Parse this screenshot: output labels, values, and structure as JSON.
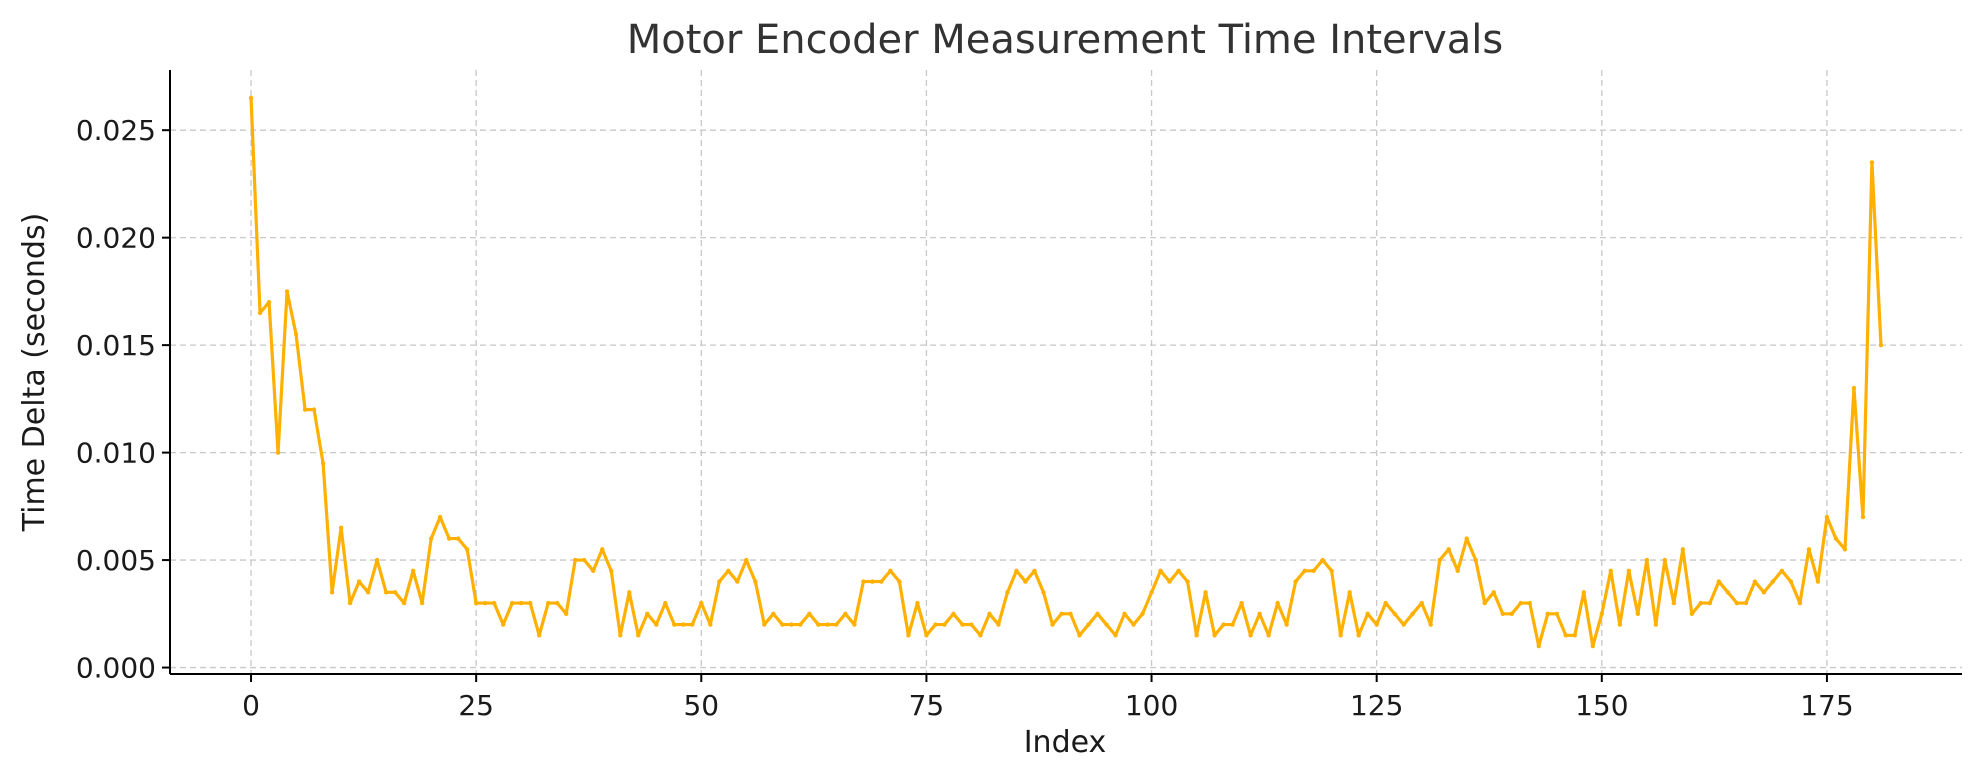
{
  "chart_data": {
    "type": "line",
    "title": "Motor Encoder Measurement Time Intervals",
    "xlabel": "Index",
    "ylabel": "Time Delta (seconds)",
    "xlim": [
      -9,
      190
    ],
    "ylim": [
      -0.0003,
      0.0278
    ],
    "xticks": [
      0,
      25,
      50,
      75,
      100,
      125,
      150,
      175
    ],
    "xtick_labels": [
      "0",
      "25",
      "50",
      "75",
      "100",
      "125",
      "150",
      "175"
    ],
    "yticks": [
      0.0,
      0.005,
      0.01,
      0.015,
      0.02,
      0.025
    ],
    "ytick_labels": [
      "0.000",
      "0.005",
      "0.010",
      "0.015",
      "0.020",
      "0.025"
    ],
    "grid": true,
    "legend": false,
    "series": [
      {
        "color": "#FFB000",
        "x": [
          0,
          1,
          2,
          3,
          4,
          5,
          6,
          7,
          8,
          9,
          10,
          11,
          12,
          13,
          14,
          15,
          16,
          17,
          18,
          19,
          20,
          21,
          22,
          23,
          24,
          25,
          26,
          27,
          28,
          29,
          30,
          31,
          32,
          33,
          34,
          35,
          36,
          37,
          38,
          39,
          40,
          41,
          42,
          43,
          44,
          45,
          46,
          47,
          48,
          49,
          50,
          51,
          52,
          53,
          54,
          55,
          56,
          57,
          58,
          59,
          60,
          61,
          62,
          63,
          64,
          65,
          66,
          67,
          68,
          69,
          70,
          71,
          72,
          73,
          74,
          75,
          76,
          77,
          78,
          79,
          80,
          81,
          82,
          83,
          84,
          85,
          86,
          87,
          88,
          89,
          90,
          91,
          92,
          93,
          94,
          95,
          96,
          97,
          98,
          99,
          100,
          101,
          102,
          103,
          104,
          105,
          106,
          107,
          108,
          109,
          110,
          111,
          112,
          113,
          114,
          115,
          116,
          117,
          118,
          119,
          120,
          121,
          122,
          123,
          124,
          125,
          126,
          127,
          128,
          129,
          130,
          131,
          132,
          133,
          134,
          135,
          136,
          137,
          138,
          139,
          140,
          141,
          142,
          143,
          144,
          145,
          146,
          147,
          148,
          149,
          150,
          151,
          152,
          153,
          154,
          155,
          156,
          157,
          158,
          159,
          160,
          161,
          162,
          163,
          164,
          165,
          166,
          167,
          168,
          169,
          170,
          171,
          172,
          173,
          174,
          175,
          176,
          177,
          178,
          179,
          180,
          181
        ],
        "values": [
          0.0265,
          0.0165,
          0.017,
          0.01,
          0.0175,
          0.0155,
          0.012,
          0.012,
          0.0095,
          0.0035,
          0.0065,
          0.003,
          0.004,
          0.0035,
          0.005,
          0.0035,
          0.0035,
          0.003,
          0.0045,
          0.003,
          0.006,
          0.007,
          0.006,
          0.006,
          0.0055,
          0.003,
          0.003,
          0.003,
          0.002,
          0.003,
          0.003,
          0.003,
          0.0015,
          0.003,
          0.003,
          0.0025,
          0.005,
          0.005,
          0.0045,
          0.0055,
          0.0045,
          0.0015,
          0.0035,
          0.0015,
          0.0025,
          0.002,
          0.003,
          0.002,
          0.002,
          0.002,
          0.003,
          0.002,
          0.004,
          0.0045,
          0.004,
          0.005,
          0.004,
          0.002,
          0.0025,
          0.002,
          0.002,
          0.002,
          0.0025,
          0.002,
          0.002,
          0.002,
          0.0025,
          0.002,
          0.004,
          0.004,
          0.004,
          0.0045,
          0.004,
          0.0015,
          0.003,
          0.0015,
          0.002,
          0.002,
          0.0025,
          0.002,
          0.002,
          0.0015,
          0.0025,
          0.002,
          0.0035,
          0.0045,
          0.004,
          0.0045,
          0.0035,
          0.002,
          0.0025,
          0.0025,
          0.0015,
          0.002,
          0.0025,
          0.002,
          0.0015,
          0.0025,
          0.002,
          0.0025,
          0.0035,
          0.0045,
          0.004,
          0.0045,
          0.004,
          0.0015,
          0.0035,
          0.0015,
          0.002,
          0.002,
          0.003,
          0.0015,
          0.0025,
          0.0015,
          0.003,
          0.002,
          0.004,
          0.0045,
          0.0045,
          0.005,
          0.0045,
          0.0015,
          0.0035,
          0.0015,
          0.0025,
          0.002,
          0.003,
          0.0025,
          0.002,
          0.0025,
          0.003,
          0.002,
          0.005,
          0.0055,
          0.0045,
          0.006,
          0.005,
          0.003,
          0.0035,
          0.0025,
          0.0025,
          0.003,
          0.003,
          0.001,
          0.0025,
          0.0025,
          0.0015,
          0.0015,
          0.0035,
          0.001,
          0.0025,
          0.0045,
          0.002,
          0.0045,
          0.0025,
          0.005,
          0.002,
          0.005,
          0.003,
          0.0055,
          0.0025,
          0.003,
          0.003,
          0.004,
          0.0035,
          0.003,
          0.003,
          0.004,
          0.0035,
          0.004,
          0.0045,
          0.004,
          0.003,
          0.0055,
          0.004,
          0.007,
          0.006,
          0.0055,
          0.013,
          0.007,
          0.0235,
          0.015
        ]
      }
    ]
  }
}
